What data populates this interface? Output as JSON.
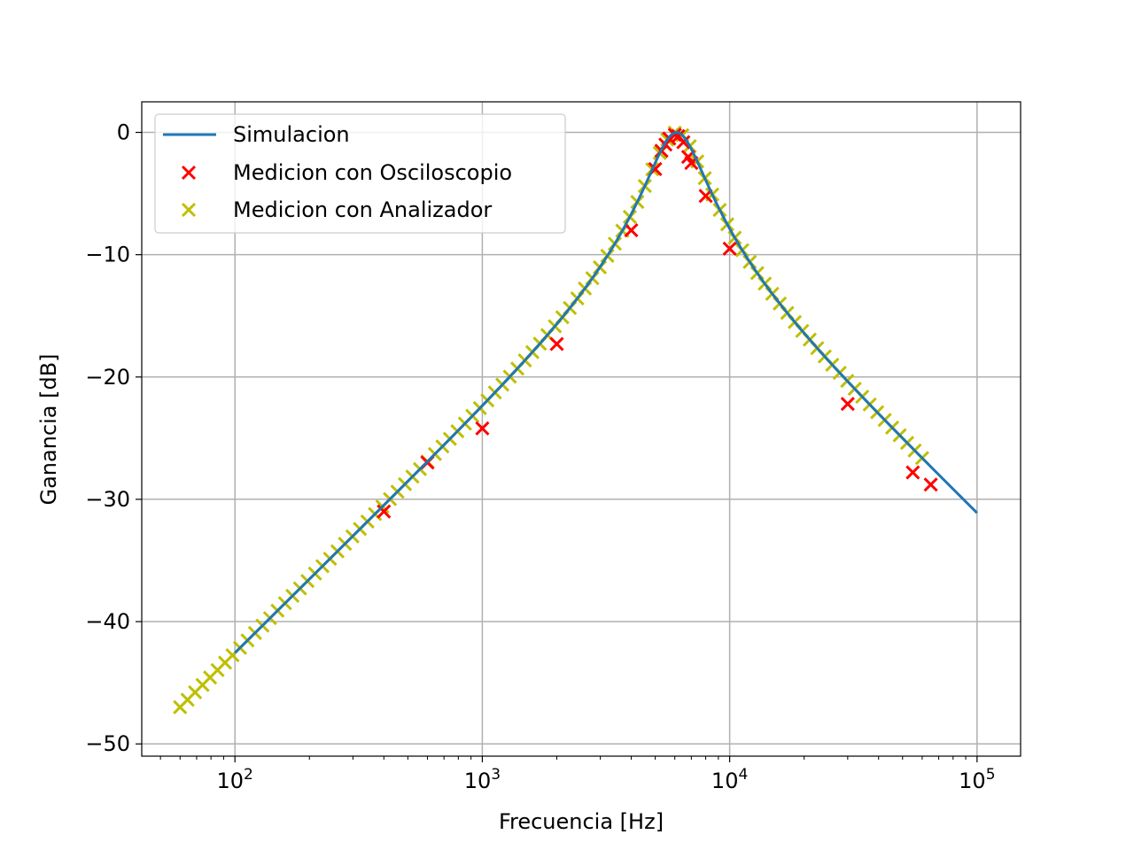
{
  "chart_data": {
    "type": "line",
    "title": "",
    "xlabel": "Frecuencia [Hz]",
    "ylabel": "Ganancia [dB]",
    "xscale": "log",
    "xlim": [
      42,
      150000
    ],
    "ylim": [
      -51,
      2.5
    ],
    "grid": true,
    "legend_position": "top-left",
    "x_ticks": [
      {
        "value": 100,
        "base": "10",
        "exp": "2"
      },
      {
        "value": 1000,
        "base": "10",
        "exp": "3"
      },
      {
        "value": 10000,
        "base": "10",
        "exp": "4"
      },
      {
        "value": 100000,
        "base": "10",
        "exp": "5"
      }
    ],
    "y_ticks": [
      {
        "value": 0,
        "label": "0"
      },
      {
        "value": -10,
        "label": "−10"
      },
      {
        "value": -20,
        "label": "−20"
      },
      {
        "value": -30,
        "label": "−30"
      },
      {
        "value": -40,
        "label": "−40"
      },
      {
        "value": -50,
        "label": "−50"
      }
    ],
    "series": [
      {
        "name": "Simulacion",
        "kind": "line",
        "color": "#1f77b4",
        "model": {
          "f0": 6100,
          "Q": 2.2
        },
        "x_range": [
          100,
          100000
        ]
      },
      {
        "name": "Medicion con Osciloscopio",
        "kind": "scatter",
        "marker": "x",
        "color": "#ff0000",
        "points": [
          [
            400,
            -31
          ],
          [
            600,
            -27
          ],
          [
            1000,
            -24.2
          ],
          [
            2000,
            -17.3
          ],
          [
            4000,
            -8.0
          ],
          [
            5000,
            -3.0
          ],
          [
            5300,
            -1.5
          ],
          [
            5500,
            -1.0
          ],
          [
            5700,
            -0.5
          ],
          [
            6000,
            -0.2
          ],
          [
            6200,
            -0.3
          ],
          [
            6500,
            -0.8
          ],
          [
            6800,
            -2.0
          ],
          [
            7000,
            -2.5
          ],
          [
            8000,
            -5.2
          ],
          [
            10000,
            -9.5
          ],
          [
            30000,
            -22.2
          ],
          [
            55000,
            -27.8
          ],
          [
            65000,
            -28.8
          ]
        ]
      },
      {
        "name": "Medicion con Analizador",
        "kind": "scatter",
        "marker": "x",
        "color": "#bfbf00",
        "model": {
          "f0": 6100,
          "Q": 2.2
        },
        "x_range": [
          60,
          60000
        ],
        "count": 100
      }
    ]
  }
}
